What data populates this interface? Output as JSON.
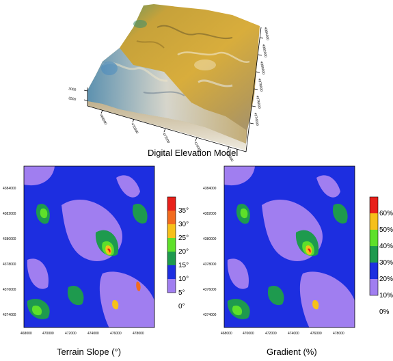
{
  "figure": {
    "dem": {
      "title": "Digital Elevation Model",
      "easting_ticks": [
        "468000",
        "470000",
        "472000",
        "474000",
        "476000"
      ],
      "northing_ticks": [
        "4384000",
        "4382000",
        "4380000",
        "4378000",
        "4376000",
        "4374000"
      ],
      "elevation_ticks": [
        "3000",
        "2500"
      ]
    },
    "slope_map": {
      "title": "Terrain Slope (°)",
      "x_ticks": [
        "468000",
        "470000",
        "472000",
        "474000",
        "476000",
        "478000"
      ],
      "y_ticks": [
        "4384000",
        "4382000",
        "4380000",
        "4378000",
        "4376000",
        "4374000"
      ],
      "legend": {
        "labels": [
          "35°",
          "30°",
          "25°",
          "20°",
          "15°",
          "10°",
          "5°",
          "0°"
        ],
        "colors": [
          "#e8201a",
          "#f26b1e",
          "#f6c01a",
          "#5ee02a",
          "#1e9a4e",
          "#1d2ee0",
          "#a07ef0"
        ]
      }
    },
    "gradient_map": {
      "title": "Gradient (%)",
      "x_ticks": [
        "468000",
        "470000",
        "472000",
        "474000",
        "476000",
        "478000"
      ],
      "y_ticks": [
        "4384000",
        "4382000",
        "4380000",
        "4378000",
        "4376000",
        "4374000"
      ],
      "legend": {
        "labels": [
          "60%",
          "50%",
          "40%",
          "30%",
          "20%",
          "10%",
          "0%"
        ],
        "colors": [
          "#e8201a",
          "#f6c01a",
          "#5ee02a",
          "#1e9a4e",
          "#1d2ee0",
          "#a07ef0"
        ]
      }
    }
  }
}
